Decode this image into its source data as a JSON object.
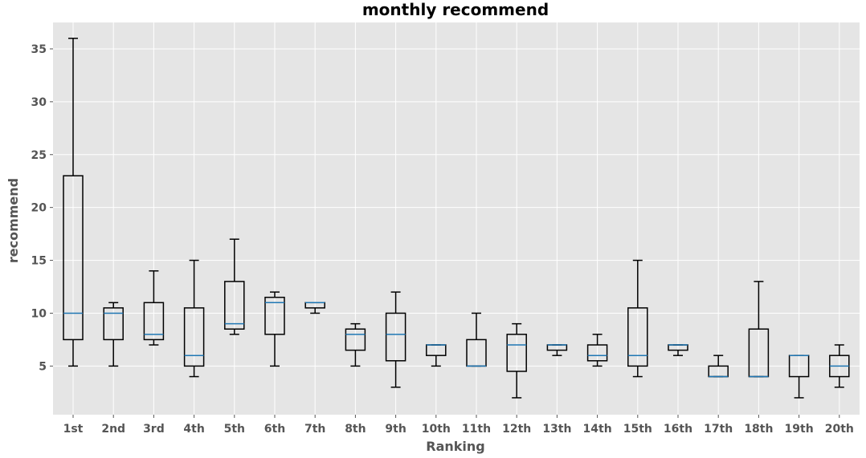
{
  "chart_data": {
    "type": "boxplot",
    "title": "monthly recommend",
    "xlabel": "Ranking",
    "ylabel": "recommend",
    "ylim": [
      0.4,
      37.5
    ],
    "yticks": [
      5,
      10,
      15,
      20,
      25,
      30,
      35
    ],
    "grid": true,
    "categories": [
      "1st",
      "2nd",
      "3rd",
      "4th",
      "5th",
      "6th",
      "7th",
      "8th",
      "9th",
      "10th",
      "11th",
      "12th",
      "13th",
      "14th",
      "15th",
      "16th",
      "17th",
      "18th",
      "19th",
      "20th"
    ],
    "boxes": [
      {
        "whislo": 5,
        "q1": 7.5,
        "med": 10,
        "q3": 23,
        "whishi": 36
      },
      {
        "whislo": 5,
        "q1": 7.5,
        "med": 10,
        "q3": 10.5,
        "whishi": 11
      },
      {
        "whislo": 7,
        "q1": 7.5,
        "med": 8,
        "q3": 11,
        "whishi": 14
      },
      {
        "whislo": 4,
        "q1": 5,
        "med": 6,
        "q3": 10.5,
        "whishi": 15
      },
      {
        "whislo": 8,
        "q1": 8.5,
        "med": 9,
        "q3": 13,
        "whishi": 17
      },
      {
        "whislo": 5,
        "q1": 8,
        "med": 11,
        "q3": 11.5,
        "whishi": 12
      },
      {
        "whislo": 10,
        "q1": 10.5,
        "med": 11,
        "q3": 11,
        "whishi": 11
      },
      {
        "whislo": 5,
        "q1": 6.5,
        "med": 8,
        "q3": 8.5,
        "whishi": 9
      },
      {
        "whislo": 3,
        "q1": 5.5,
        "med": 8,
        "q3": 10,
        "whishi": 12
      },
      {
        "whislo": 5,
        "q1": 6,
        "med": 7,
        "q3": 7,
        "whishi": 7
      },
      {
        "whislo": 5,
        "q1": 5,
        "med": 5,
        "q3": 7.5,
        "whishi": 10
      },
      {
        "whislo": 2,
        "q1": 4.5,
        "med": 7,
        "q3": 8,
        "whishi": 9
      },
      {
        "whislo": 6,
        "q1": 6.5,
        "med": 7,
        "q3": 7,
        "whishi": 7
      },
      {
        "whislo": 5,
        "q1": 5.5,
        "med": 6,
        "q3": 7,
        "whishi": 8
      },
      {
        "whislo": 4,
        "q1": 5,
        "med": 6,
        "q3": 10.5,
        "whishi": 15
      },
      {
        "whislo": 6,
        "q1": 6.5,
        "med": 7,
        "q3": 7,
        "whishi": 7
      },
      {
        "whislo": 4,
        "q1": 4,
        "med": 4,
        "q3": 5,
        "whishi": 6
      },
      {
        "whislo": 4,
        "q1": 4,
        "med": 4,
        "q3": 8.5,
        "whishi": 13
      },
      {
        "whislo": 2,
        "q1": 4,
        "med": 6,
        "q3": 6,
        "whishi": 6
      },
      {
        "whislo": 3,
        "q1": 4,
        "med": 5,
        "q3": 6,
        "whishi": 7
      }
    ],
    "colors": {
      "plot_background": "#e5e5e5",
      "grid": "#ffffff",
      "box": "#000000",
      "median": "#1f77b4",
      "tick_label": "#555555"
    }
  }
}
